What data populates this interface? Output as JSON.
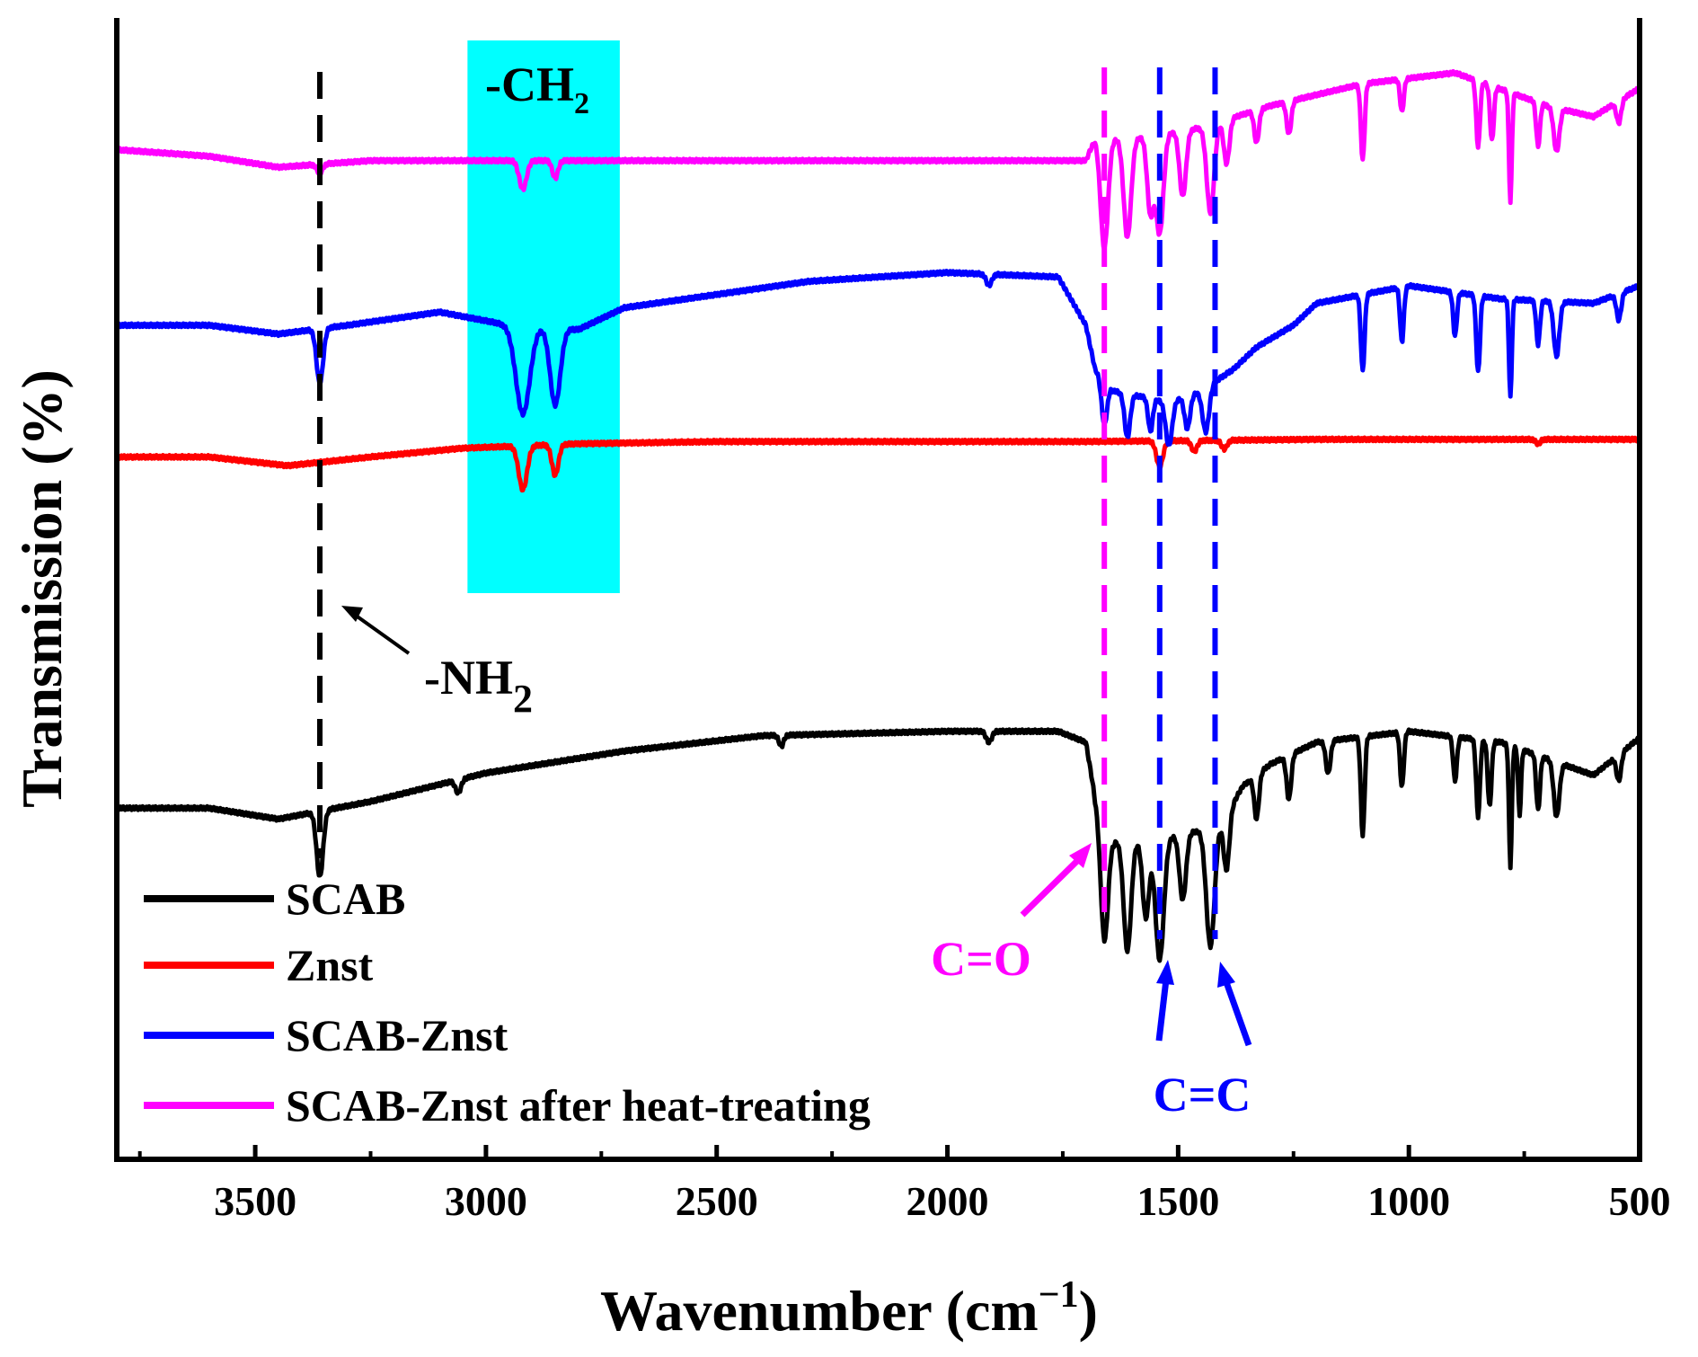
{
  "chart_data": {
    "type": "line",
    "xlabel": "Wavenumber (cm",
    "xlabel_sup": "−1",
    "xlabel_close": ")",
    "ylabel": "Transmission (%)",
    "xlim": [
      3800,
      500
    ],
    "x_reversed": true,
    "ylim": [
      -4.6,
      0.6
    ],
    "yticks_shown": false,
    "grid": false,
    "xticks": [
      3500,
      3000,
      2500,
      2000,
      1500,
      1000,
      500
    ],
    "legend_position": "bottom-left",
    "series": [
      {
        "name": "SCAB",
        "color": "#000000",
        "offset": -3.0,
        "baseline": [
          [
            3800,
            0.0
          ],
          [
            3600,
            0.0
          ],
          [
            3450,
            -0.05
          ],
          [
            3250,
            0.03
          ],
          [
            3000,
            0.16
          ],
          [
            2700,
            0.26
          ],
          [
            2400,
            0.33
          ],
          [
            2000,
            0.35
          ],
          [
            1760,
            0.35
          ],
          [
            1700,
            0.3
          ],
          [
            1680,
            0.05
          ],
          [
            1640,
            -0.15
          ],
          [
            1560,
            -0.15
          ],
          [
            1450,
            -0.1
          ],
          [
            1400,
            -0.05
          ],
          [
            1360,
            0.1
          ],
          [
            1300,
            0.2
          ],
          [
            1200,
            0.3
          ],
          [
            1000,
            0.35
          ],
          [
            800,
            0.3
          ],
          [
            600,
            0.15
          ],
          [
            500,
            0.32
          ]
        ],
        "bands": [
          [
            3360,
            0.3,
            7
          ],
          [
            3060,
            0.06,
            6
          ],
          [
            2360,
            0.05,
            5
          ],
          [
            1910,
            0.05,
            6
          ],
          [
            1660,
            0.55,
            8
          ],
          [
            1610,
            0.5,
            8
          ],
          [
            1570,
            0.35,
            7
          ],
          [
            1540,
            0.55,
            9
          ],
          [
            1490,
            0.3,
            7
          ],
          [
            1430,
            0.55,
            9
          ],
          [
            1395,
            0.25,
            6
          ],
          [
            1330,
            0.2,
            5
          ],
          [
            1260,
            0.2,
            5
          ],
          [
            1175,
            0.15,
            5
          ],
          [
            1100,
            0.45,
            4
          ],
          [
            1015,
            0.25,
            4
          ],
          [
            900,
            0.2,
            4
          ],
          [
            850,
            0.35,
            4
          ],
          [
            825,
            0.3,
            4
          ],
          [
            780,
            0.55,
            3
          ],
          [
            760,
            0.3,
            3
          ],
          [
            720,
            0.25,
            4
          ],
          [
            680,
            0.25,
            6
          ],
          [
            545,
            0.12,
            5
          ]
        ]
      },
      {
        "name": "Znst",
        "color": "#ff0000",
        "offset": -1.4,
        "baseline": [
          [
            3800,
            0.0
          ],
          [
            3600,
            0.0
          ],
          [
            3430,
            -0.04
          ],
          [
            3250,
            0.0
          ],
          [
            3050,
            0.04
          ],
          [
            2800,
            0.06
          ],
          [
            2500,
            0.07
          ],
          [
            2000,
            0.07
          ],
          [
            1700,
            0.07
          ],
          [
            1200,
            0.08
          ],
          [
            800,
            0.08
          ],
          [
            500,
            0.08
          ]
        ],
        "bands": [
          [
            2920,
            0.2,
            9
          ],
          [
            2850,
            0.14,
            7
          ],
          [
            1540,
            0.12,
            7
          ],
          [
            1465,
            0.05,
            6
          ],
          [
            1400,
            0.04,
            6
          ],
          [
            720,
            0.02,
            5
          ]
        ]
      },
      {
        "name": "SCAB-Znst",
        "color": "#0000ff",
        "offset": -0.8,
        "baseline": [
          [
            3800,
            0.0
          ],
          [
            3600,
            0.0
          ],
          [
            3450,
            -0.04
          ],
          [
            3300,
            0.0
          ],
          [
            3100,
            0.06
          ],
          [
            2950,
            0.0
          ],
          [
            2800,
            -0.02
          ],
          [
            2700,
            0.08
          ],
          [
            2500,
            0.14
          ],
          [
            2300,
            0.2
          ],
          [
            2000,
            0.24
          ],
          [
            1760,
            0.22
          ],
          [
            1700,
            0.0
          ],
          [
            1680,
            -0.2
          ],
          [
            1640,
            -0.3
          ],
          [
            1520,
            -0.35
          ],
          [
            1450,
            -0.3
          ],
          [
            1380,
            -0.2
          ],
          [
            1330,
            -0.1
          ],
          [
            1250,
            0.0
          ],
          [
            1200,
            0.1
          ],
          [
            1000,
            0.18
          ],
          [
            800,
            0.12
          ],
          [
            600,
            0.1
          ],
          [
            500,
            0.18
          ]
        ],
        "bands": [
          [
            3360,
            0.25,
            7
          ],
          [
            2920,
            0.4,
            15
          ],
          [
            2850,
            0.35,
            11
          ],
          [
            1910,
            0.05,
            6
          ],
          [
            1660,
            0.2,
            6
          ],
          [
            1610,
            0.2,
            6
          ],
          [
            1560,
            0.15,
            5
          ],
          [
            1520,
            0.2,
            7
          ],
          [
            1480,
            0.15,
            6
          ],
          [
            1440,
            0.2,
            7
          ],
          [
            1100,
            0.35,
            4
          ],
          [
            1015,
            0.25,
            4
          ],
          [
            900,
            0.2,
            4
          ],
          [
            850,
            0.35,
            4
          ],
          [
            780,
            0.45,
            3
          ],
          [
            720,
            0.2,
            4
          ],
          [
            680,
            0.25,
            6
          ],
          [
            545,
            0.12,
            5
          ]
        ]
      },
      {
        "name": "SCAB-Znst after heat-treating",
        "color": "#ff00ff",
        "offset": 0.0,
        "baseline": [
          [
            3800,
            0.0
          ],
          [
            3600,
            -0.03
          ],
          [
            3450,
            -0.08
          ],
          [
            3250,
            -0.05
          ],
          [
            3000,
            -0.05
          ],
          [
            2500,
            -0.05
          ],
          [
            2000,
            -0.05
          ],
          [
            1700,
            -0.05
          ],
          [
            1680,
            0.05
          ],
          [
            1600,
            0.05
          ],
          [
            1450,
            0.1
          ],
          [
            1300,
            0.2
          ],
          [
            1100,
            0.3
          ],
          [
            900,
            0.35
          ],
          [
            700,
            0.2
          ],
          [
            600,
            0.15
          ],
          [
            500,
            0.28
          ]
        ],
        "bands": [
          [
            3360,
            0.04,
            6
          ],
          [
            2920,
            0.13,
            8
          ],
          [
            2850,
            0.08,
            6
          ],
          [
            1660,
            0.5,
            8
          ],
          [
            1610,
            0.45,
            8
          ],
          [
            1560,
            0.35,
            7
          ],
          [
            1540,
            0.45,
            8
          ],
          [
            1490,
            0.3,
            7
          ],
          [
            1430,
            0.4,
            8
          ],
          [
            1395,
            0.2,
            6
          ],
          [
            1330,
            0.15,
            5
          ],
          [
            1260,
            0.15,
            5
          ],
          [
            1100,
            0.35,
            4
          ],
          [
            1015,
            0.15,
            4
          ],
          [
            850,
            0.3,
            4
          ],
          [
            820,
            0.25,
            4
          ],
          [
            780,
            0.5,
            3
          ],
          [
            720,
            0.2,
            4
          ],
          [
            680,
            0.2,
            6
          ],
          [
            545,
            0.1,
            5
          ]
        ]
      }
    ],
    "highlight_band": {
      "x_from": 3040,
      "x_to": 2710,
      "color": "#00ffff",
      "label": "-CH",
      "label_sub": "2"
    },
    "reference_lines": [
      {
        "x": 3360,
        "color": "#000000",
        "style": "dashed"
      },
      {
        "x": 1660,
        "color": "#ff00ff",
        "style": "dashed"
      },
      {
        "x": 1540,
        "color": "#0000ff",
        "style": "dashed"
      },
      {
        "x": 1420,
        "color": "#0000ff",
        "style": "dashed"
      }
    ],
    "annotations": {
      "nh2": {
        "text": "-NH",
        "sub": "2",
        "color": "#000000"
      },
      "co": {
        "text": "C=O",
        "color": "#ff00ff"
      },
      "cc": {
        "text": "C=C",
        "color": "#0000ff"
      }
    }
  }
}
